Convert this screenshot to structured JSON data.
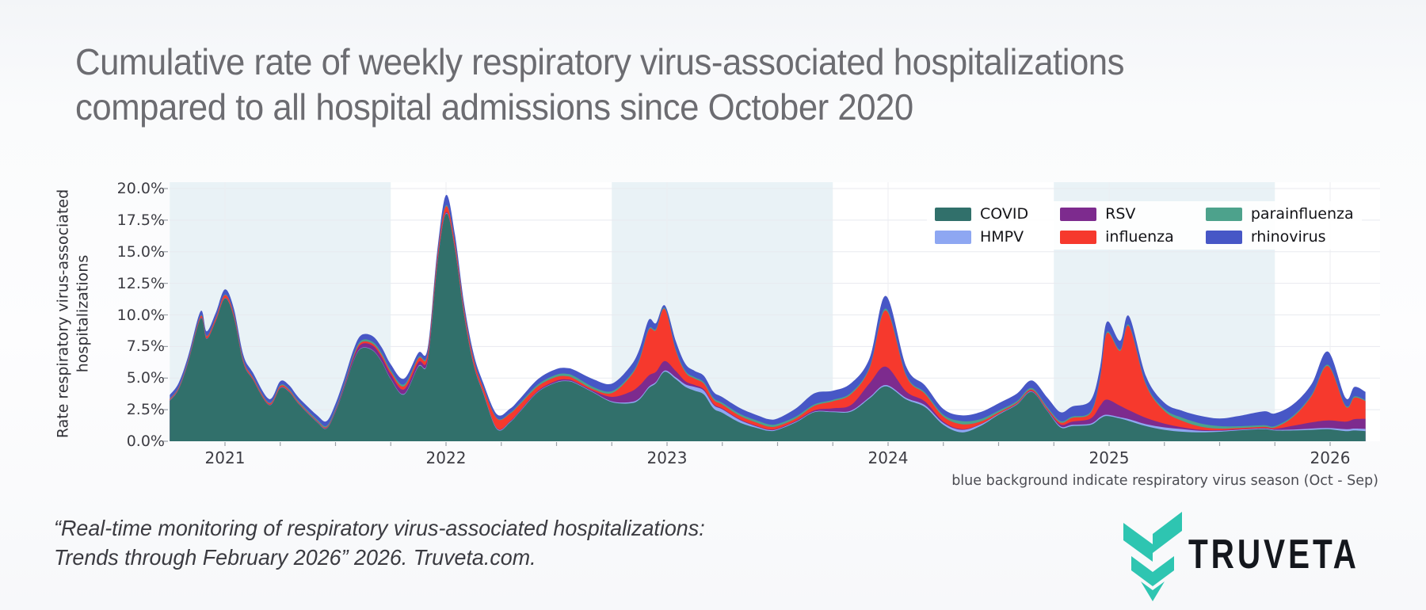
{
  "header": {
    "title_lines": [
      "Cumulative rate of weekly respiratory virus-associated hospitalizations",
      "compared to all hospital admissions since October 2020"
    ]
  },
  "chart": {
    "y_axis_label": "Rate respiratory virus-associated\nhospitalizations",
    "note": "blue background indicate respiratory virus season (Oct - Sep)"
  },
  "chart_data": {
    "type": "area",
    "stacked": true,
    "title": "Cumulative rate of weekly respiratory virus-associated hospitalizations compared to all hospital admissions since October 2020",
    "xlabel": "",
    "ylabel": "Rate respiratory virus-associated hospitalizations",
    "ylim": [
      0,
      20
    ],
    "y_ticks": [
      "0.0%",
      "2.5%",
      "5.0%",
      "7.5%",
      "10.0%",
      "12.5%",
      "15.0%",
      "17.5%",
      "20.0%"
    ],
    "x_ticks": [
      "2021",
      "2022",
      "2023",
      "2024",
      "2025",
      "2026"
    ],
    "x_unit": "decimal_year",
    "grid": true,
    "legend_position": "upper right, 2 rows",
    "season_bands": [
      [
        2020.75,
        2021.75
      ],
      [
        2022.75,
        2023.75
      ],
      [
        2024.75,
        2025.75
      ]
    ],
    "band_color": "#e9f2f6",
    "gridline_color": "#e8eaef",
    "x": [
      2020.75,
      2020.79,
      2020.833,
      2020.89,
      2020.917,
      2020.958,
      2021.0,
      2021.04,
      2021.083,
      2021.125,
      2021.2,
      2021.25,
      2021.29,
      2021.333,
      2021.417,
      2021.46,
      2021.5,
      2021.54,
      2021.583,
      2021.617,
      2021.667,
      2021.708,
      2021.75,
      2021.81,
      2021.875,
      2021.917,
      2021.96,
      2022.0,
      2022.04,
      2022.083,
      2022.125,
      2022.167,
      2022.23,
      2022.29,
      2022.333,
      2022.417,
      2022.5,
      2022.55,
      2022.583,
      2022.667,
      2022.75,
      2022.833,
      2022.875,
      2022.917,
      2022.95,
      2022.99,
      2023.04,
      2023.083,
      2023.125,
      2023.167,
      2023.21,
      2023.25,
      2023.333,
      2023.417,
      2023.46,
      2023.5,
      2023.583,
      2023.667,
      2023.75,
      2023.833,
      2023.917,
      2023.99,
      2024.083,
      2024.167,
      2024.25,
      2024.333,
      2024.417,
      2024.5,
      2024.583,
      2024.65,
      2024.72,
      2024.78,
      2024.833,
      2024.917,
      2024.96,
      2024.99,
      2025.05,
      2025.09,
      2025.167,
      2025.25,
      2025.333,
      2025.417,
      2025.5,
      2025.583,
      2025.7,
      2025.75,
      2025.833,
      2025.917,
      2025.99,
      2026.07,
      2026.11,
      2026.16
    ],
    "series": [
      {
        "name": "COVID",
        "color": "#31706b",
        "values": [
          3.2,
          4.1,
          6.2,
          9.7,
          8.1,
          9.5,
          11.3,
          9.8,
          6.2,
          4.9,
          2.85,
          4.2,
          3.9,
          2.95,
          1.5,
          1.0,
          2.3,
          4.2,
          6.4,
          7.35,
          7.2,
          6.3,
          4.9,
          3.7,
          5.9,
          6.3,
          13.8,
          18.0,
          15.2,
          9.8,
          6.0,
          3.85,
          0.95,
          1.5,
          2.3,
          3.9,
          4.65,
          4.75,
          4.6,
          3.85,
          3.1,
          3.0,
          3.3,
          4.2,
          4.6,
          5.5,
          4.9,
          4.3,
          4.0,
          3.7,
          2.6,
          2.25,
          1.45,
          1.0,
          0.82,
          0.9,
          1.5,
          2.3,
          2.3,
          2.35,
          3.4,
          4.35,
          3.3,
          2.7,
          1.3,
          0.7,
          1.2,
          2.1,
          2.9,
          3.9,
          2.4,
          1.1,
          1.2,
          1.3,
          1.8,
          2.0,
          1.8,
          1.6,
          1.2,
          0.9,
          0.75,
          0.7,
          0.75,
          0.85,
          0.95,
          0.85,
          0.85,
          0.9,
          0.95,
          0.8,
          0.85,
          0.8
        ]
      },
      {
        "name": "HMPV",
        "color": "#8ea7f2",
        "values": [
          0.02,
          0.02,
          0.02,
          0.02,
          0.02,
          0.02,
          0.02,
          0.02,
          0.02,
          0.02,
          0.02,
          0.02,
          0.02,
          0.02,
          0.02,
          0.02,
          0.02,
          0.02,
          0.03,
          0.03,
          0.03,
          0.03,
          0.04,
          0.05,
          0.05,
          0.05,
          0.05,
          0.05,
          0.05,
          0.05,
          0.05,
          0.05,
          0.05,
          0.04,
          0.04,
          0.04,
          0.04,
          0.04,
          0.04,
          0.04,
          0.06,
          0.1,
          0.1,
          0.1,
          0.1,
          0.1,
          0.15,
          0.2,
          0.3,
          0.3,
          0.28,
          0.27,
          0.2,
          0.1,
          0.07,
          0.05,
          0.05,
          0.05,
          0.06,
          0.08,
          0.1,
          0.1,
          0.12,
          0.15,
          0.15,
          0.2,
          0.12,
          0.05,
          0.04,
          0.04,
          0.04,
          0.08,
          0.1,
          0.1,
          0.12,
          0.1,
          0.1,
          0.15,
          0.15,
          0.2,
          0.2,
          0.12,
          0.08,
          0.05,
          0.05,
          0.05,
          0.08,
          0.1,
          0.1,
          0.15,
          0.15,
          0.18
        ]
      },
      {
        "name": "RSV",
        "color": "#7d2b8e",
        "values": [
          0.03,
          0.03,
          0.03,
          0.03,
          0.03,
          0.03,
          0.03,
          0.03,
          0.03,
          0.03,
          0.03,
          0.03,
          0.03,
          0.03,
          0.04,
          0.04,
          0.1,
          0.15,
          0.25,
          0.3,
          0.35,
          0.35,
          0.35,
          0.35,
          0.3,
          0.25,
          0.15,
          0.08,
          0.06,
          0.05,
          0.05,
          0.04,
          0.04,
          0.05,
          0.05,
          0.07,
          0.1,
          0.1,
          0.08,
          0.1,
          0.35,
          0.8,
          1.0,
          0.9,
          0.8,
          0.75,
          0.5,
          0.25,
          0.15,
          0.1,
          0.07,
          0.06,
          0.05,
          0.05,
          0.05,
          0.05,
          0.06,
          0.1,
          0.25,
          0.45,
          1.1,
          1.45,
          0.5,
          0.3,
          0.1,
          0.05,
          0.03,
          0.03,
          0.04,
          0.05,
          0.06,
          0.15,
          0.25,
          0.4,
          0.9,
          1.2,
          0.9,
          0.7,
          0.5,
          0.3,
          0.15,
          0.08,
          0.05,
          0.05,
          0.05,
          0.08,
          0.3,
          0.5,
          0.6,
          0.6,
          0.75,
          0.8
        ]
      },
      {
        "name": "influenza",
        "color": "#f6392d",
        "values": [
          0.07,
          0.08,
          0.1,
          0.15,
          0.15,
          0.18,
          0.22,
          0.2,
          0.15,
          0.12,
          0.1,
          0.12,
          0.1,
          0.08,
          0.06,
          0.06,
          0.05,
          0.07,
          0.1,
          0.15,
          0.15,
          0.18,
          0.2,
          0.25,
          0.3,
          0.3,
          0.4,
          0.45,
          0.4,
          0.35,
          0.35,
          0.35,
          0.75,
          0.6,
          0.5,
          0.35,
          0.3,
          0.25,
          0.2,
          0.12,
          0.3,
          1.2,
          2.0,
          3.6,
          3.3,
          4.1,
          1.6,
          0.7,
          0.5,
          0.45,
          0.35,
          0.32,
          0.28,
          0.25,
          0.22,
          0.2,
          0.2,
          0.35,
          0.55,
          0.85,
          1.2,
          4.45,
          1.2,
          0.6,
          0.4,
          0.4,
          0.2,
          0.1,
          0.08,
          0.1,
          0.1,
          0.15,
          0.3,
          0.45,
          2.2,
          5.25,
          4.35,
          6.65,
          2.6,
          1.0,
          0.5,
          0.25,
          0.12,
          0.1,
          0.1,
          0.12,
          0.7,
          2.1,
          4.3,
          1.2,
          1.7,
          1.4
        ]
      },
      {
        "name": "parainfluenza",
        "color": "#4da28c",
        "values": [
          0.05,
          0.05,
          0.05,
          0.05,
          0.05,
          0.05,
          0.05,
          0.05,
          0.05,
          0.05,
          0.06,
          0.08,
          0.08,
          0.09,
          0.1,
          0.1,
          0.11,
          0.12,
          0.13,
          0.15,
          0.15,
          0.15,
          0.15,
          0.15,
          0.1,
          0.1,
          0.1,
          0.1,
          0.08,
          0.06,
          0.06,
          0.05,
          0.05,
          0.07,
          0.1,
          0.15,
          0.18,
          0.19,
          0.2,
          0.18,
          0.15,
          0.12,
          0.12,
          0.1,
          0.1,
          0.1,
          0.1,
          0.12,
          0.12,
          0.12,
          0.13,
          0.14,
          0.16,
          0.18,
          0.18,
          0.17,
          0.15,
          0.12,
          0.12,
          0.12,
          0.1,
          0.15,
          0.1,
          0.12,
          0.15,
          0.25,
          0.2,
          0.15,
          0.12,
          0.12,
          0.12,
          0.12,
          0.1,
          0.1,
          0.1,
          0.1,
          0.1,
          0.1,
          0.1,
          0.15,
          0.25,
          0.25,
          0.2,
          0.14,
          0.12,
          0.1,
          0.1,
          0.1,
          0.1,
          0.08,
          0.1,
          0.08
        ]
      },
      {
        "name": "rhinovirus",
        "color": "#4757c6",
        "values": [
          0.3,
          0.32,
          0.32,
          0.35,
          0.35,
          0.38,
          0.4,
          0.4,
          0.38,
          0.35,
          0.28,
          0.3,
          0.3,
          0.3,
          0.33,
          0.38,
          0.4,
          0.42,
          0.42,
          0.42,
          0.45,
          0.45,
          0.45,
          0.45,
          0.35,
          0.35,
          0.5,
          0.8,
          0.6,
          0.45,
          0.4,
          0.35,
          0.3,
          0.32,
          0.35,
          0.42,
          0.45,
          0.46,
          0.5,
          0.62,
          0.6,
          0.7,
          0.75,
          0.7,
          0.45,
          0.2,
          0.65,
          0.55,
          0.5,
          0.5,
          0.48,
          0.46,
          0.46,
          0.42,
          0.41,
          0.43,
          0.64,
          0.88,
          0.72,
          0.75,
          0.7,
          1.0,
          0.65,
          0.55,
          0.45,
          0.45,
          0.55,
          0.57,
          0.6,
          0.6,
          0.75,
          0.7,
          0.8,
          0.9,
          0.8,
          0.8,
          0.7,
          0.7,
          0.6,
          0.5,
          0.55,
          0.6,
          0.6,
          0.8,
          1.1,
          1.0,
          0.9,
          0.85,
          1.05,
          0.6,
          0.75,
          0.65
        ]
      }
    ],
    "annotations": [
      "blue background indicate respiratory virus season (Oct - Sep)"
    ]
  },
  "footer": {
    "citation_lines": [
      "“Real-time monitoring of respiratory virus-associated hospitalizations:",
      "Trends through February 2026” 2026. Truveta.com."
    ],
    "brand": "TRUVETA",
    "brand_color": "#14171d",
    "logo_teal": "#2ec5b1"
  }
}
